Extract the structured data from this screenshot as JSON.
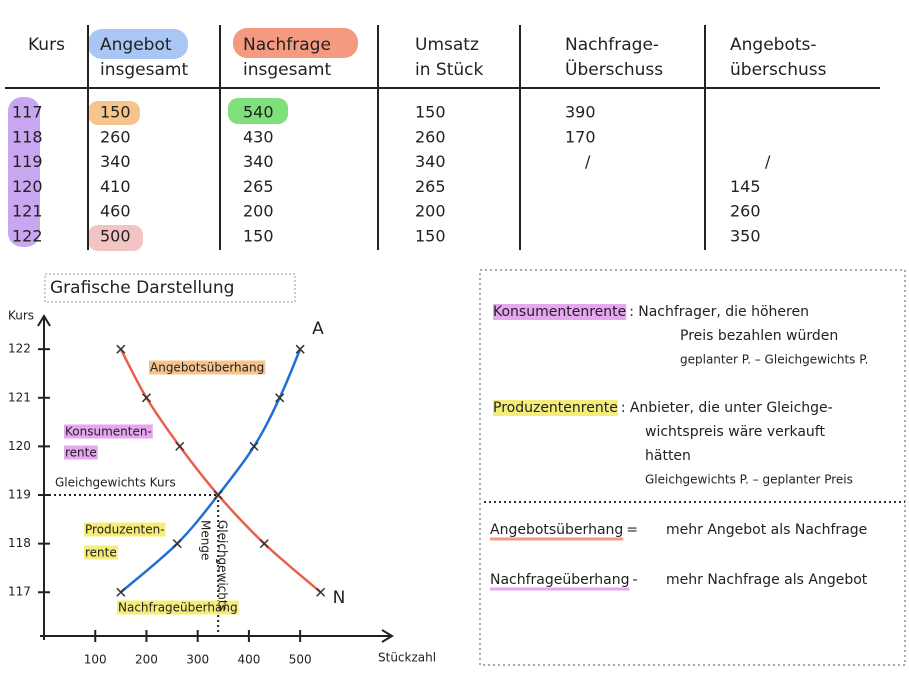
{
  "table": {
    "headers": [
      [
        "Kurs"
      ],
      [
        "Angebot",
        "insgesamt"
      ],
      [
        "Nachfrage",
        "insgesamt"
      ],
      [
        "Umsatz",
        "in Stück"
      ],
      [
        "Nachfrage-",
        "Überschuss"
      ],
      [
        "Angebots-",
        "überschuss"
      ]
    ],
    "rows": [
      [
        "117",
        "150",
        "540",
        "150",
        "390",
        null
      ],
      [
        "118",
        "260",
        "430",
        "260",
        "170",
        null
      ],
      [
        "119",
        "340",
        "340",
        "340",
        "/",
        "/"
      ],
      [
        "120",
        "410",
        "265",
        "265",
        null,
        "145"
      ],
      [
        "121",
        "460",
        "200",
        "200",
        null,
        "260"
      ],
      [
        "122",
        "500",
        "150",
        "150",
        null,
        "350"
      ]
    ]
  },
  "chart_data": {
    "type": "line",
    "title": "Grafische Darstellung",
    "ylabel": "Kurs",
    "xlabel": "Stückzahl",
    "xlim": [
      0,
      650
    ],
    "ylim": [
      116.1,
      122.6
    ],
    "xticks": [
      100,
      200,
      300,
      400,
      500
    ],
    "yticks": [
      117,
      118,
      119,
      120,
      121,
      122
    ],
    "series": [
      {
        "name": "A",
        "color": "#1f6fd6",
        "x": [
          150,
          260,
          340,
          410,
          460,
          500
        ],
        "values": [
          117,
          118,
          119,
          120,
          121,
          122
        ]
      },
      {
        "name": "N",
        "color": "#e8604c",
        "x": [
          540,
          430,
          340,
          265,
          200,
          150
        ],
        "values": [
          117,
          118,
          119,
          120,
          121,
          122
        ]
      }
    ],
    "annotations": [
      "Angebotsüberhang",
      "Konsumenten-",
      "rente",
      "Gleichgewichts Kurs",
      "Produzenten-",
      "rente",
      "Nachfrageüberhang",
      "Gleichgewichts",
      "Menge"
    ]
  },
  "notes": {
    "rents": [
      {
        "term": "Konsumentenrente",
        "sep": ":",
        "lines": [
          "Nachfrager, die höheren",
          "Preis bezahlen würden"
        ],
        "formula": "geplanter P. – Gleichgewichts P."
      },
      {
        "term": "Produzentenrente",
        "sep": ":",
        "lines": [
          "Anbieter, die unter Gleichge-",
          "wichtspreis wäre verkauft",
          "hätten"
        ],
        "formula": "Gleichgewichts P. – geplanter Preis"
      }
    ],
    "surpluses": [
      {
        "term": "Angebotsüberhang",
        "sep": "=",
        "text": "mehr Angebot als Nachfrage"
      },
      {
        "term": "Nachfrageüberhang",
        "sep": "-",
        "text": "mehr Nachfrage als Angebot"
      }
    ]
  }
}
